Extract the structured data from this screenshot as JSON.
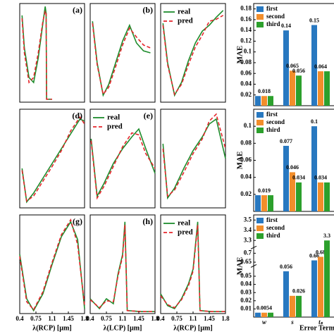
{
  "chart_data": [
    {
      "type": "line",
      "label": "(a)",
      "xlim": [
        0.4,
        1.8
      ],
      "ylim": [
        0,
        1
      ],
      "x": [
        0.45,
        0.5,
        0.6,
        0.7,
        0.8,
        0.9,
        0.95,
        0.97,
        0.98,
        1.1
      ],
      "series": [
        {
          "color": "#1e8c2c",
          "values": [
            0.88,
            0.55,
            0.25,
            0.2,
            0.45,
            0.8,
            0.97,
            0.9,
            0.03,
            0.03
          ]
        },
        {
          "color": "#e5262b",
          "dash": true,
          "values": [
            0.85,
            0.5,
            0.2,
            0.25,
            0.5,
            0.82,
            0.92,
            0.92,
            0.03,
            0.03
          ]
        }
      ]
    },
    {
      "type": "line",
      "label": "(b)",
      "xlim": [
        0.4,
        1.8
      ],
      "ylim": [
        0,
        1
      ],
      "x": [
        0.45,
        0.55,
        0.68,
        0.8,
        0.95,
        1.1,
        1.25,
        1.4,
        1.55,
        1.7
      ],
      "series": [
        {
          "color": "#1e8c2c",
          "values": [
            0.82,
            0.4,
            0.07,
            0.18,
            0.4,
            0.62,
            0.78,
            0.6,
            0.52,
            0.5
          ]
        },
        {
          "color": "#e5262b",
          "dash": true,
          "values": [
            0.8,
            0.38,
            0.08,
            0.15,
            0.36,
            0.58,
            0.75,
            0.66,
            0.58,
            0.55
          ]
        }
      ]
    },
    {
      "type": "line",
      "legend": true,
      "xlim": [
        0.4,
        1.8
      ],
      "ylim": [
        0,
        1
      ],
      "x": [
        0.45,
        0.55,
        0.7,
        0.85,
        1.0,
        1.15,
        1.3,
        1.45,
        1.6,
        1.75
      ],
      "series": [
        {
          "name": "real",
          "color": "#1e8c2c",
          "values": [
            0.8,
            0.4,
            0.07,
            0.2,
            0.42,
            0.6,
            0.72,
            0.78,
            0.86,
            0.93
          ]
        },
        {
          "name": "pred",
          "color": "#e5262b",
          "dash": true,
          "values": [
            0.78,
            0.38,
            0.08,
            0.18,
            0.38,
            0.56,
            0.68,
            0.82,
            0.84,
            0.88
          ]
        }
      ]
    },
    {
      "type": "line",
      "label": "(d)",
      "xlim": [
        0.4,
        1.8
      ],
      "ylim": [
        0,
        1
      ],
      "x": [
        0.45,
        0.55,
        0.7,
        0.9,
        1.1,
        1.3,
        1.5,
        1.7,
        1.8
      ],
      "series": [
        {
          "color": "#1e8c2c",
          "values": [
            0.4,
            0.06,
            0.15,
            0.3,
            0.45,
            0.6,
            0.75,
            0.9,
            0.88
          ]
        },
        {
          "color": "#e5262b",
          "dash": true,
          "values": [
            0.38,
            0.07,
            0.12,
            0.27,
            0.42,
            0.58,
            0.78,
            0.92,
            0.85
          ]
        }
      ]
    },
    {
      "type": "line",
      "label": "(e)",
      "legend": true,
      "xlim": [
        0.4,
        1.8
      ],
      "ylim": [
        0,
        1
      ],
      "x": [
        0.42,
        0.55,
        0.7,
        0.9,
        1.1,
        1.3,
        1.45,
        1.6,
        1.8
      ],
      "series": [
        {
          "name": "real",
          "color": "#1e8c2c",
          "values": [
            0.7,
            0.12,
            0.25,
            0.45,
            0.6,
            0.72,
            0.8,
            0.6,
            0.35
          ]
        },
        {
          "name": "pred",
          "color": "#e5262b",
          "dash": true,
          "values": [
            0.68,
            0.1,
            0.22,
            0.42,
            0.62,
            0.76,
            0.74,
            0.55,
            0.4
          ]
        }
      ]
    },
    {
      "type": "line",
      "xlim": [
        0.4,
        1.8
      ],
      "ylim": [
        0,
        1
      ],
      "x": [
        0.45,
        0.55,
        0.7,
        0.9,
        1.1,
        1.3,
        1.45,
        1.6,
        1.8
      ],
      "series": [
        {
          "color": "#1e8c2c",
          "values": [
            0.65,
            0.1,
            0.2,
            0.4,
            0.58,
            0.72,
            0.85,
            0.9,
            0.5
          ]
        },
        {
          "color": "#e5262b",
          "dash": true,
          "values": [
            0.6,
            0.12,
            0.18,
            0.36,
            0.55,
            0.7,
            0.88,
            0.95,
            0.6
          ]
        }
      ]
    },
    {
      "type": "line",
      "label": "(g)",
      "xlim": [
        0.4,
        1.8
      ],
      "ylim": [
        0,
        1
      ],
      "xticks": [
        0.4,
        0.75,
        1.1,
        1.45,
        1.8
      ],
      "xlabel": "λ(RCP) [µm]",
      "x": [
        0.4,
        0.55,
        0.7,
        0.9,
        1.1,
        1.3,
        1.5,
        1.65,
        1.8
      ],
      "series": [
        {
          "color": "#1e8c2c",
          "values": [
            0.6,
            0.15,
            0.03,
            0.2,
            0.5,
            0.78,
            0.93,
            0.75,
            0.05
          ]
        },
        {
          "color": "#e5262b",
          "dash": true,
          "values": [
            0.58,
            0.12,
            0.04,
            0.22,
            0.52,
            0.8,
            0.95,
            0.7,
            0.08
          ]
        }
      ]
    },
    {
      "type": "line",
      "label": "(h)",
      "xlim": [
        0.4,
        1.8
      ],
      "ylim": [
        0,
        1
      ],
      "xticks": [
        0.4,
        0.75,
        1.1,
        1.45,
        1.8
      ],
      "xlabel": "λ(LCP) [µm]",
      "x": [
        0.4,
        0.6,
        0.75,
        0.9,
        1.0,
        1.1,
        1.15,
        1.2,
        1.5,
        1.8
      ],
      "series": [
        {
          "color": "#1e8c2c",
          "values": [
            0.15,
            0.05,
            0.15,
            0.1,
            0.4,
            0.6,
            0.93,
            0.03,
            0.02,
            0.02
          ]
        },
        {
          "color": "#e5262b",
          "dash": true,
          "values": [
            0.14,
            0.06,
            0.13,
            0.12,
            0.38,
            0.58,
            0.9,
            0.03,
            0.02,
            0.02
          ]
        }
      ]
    },
    {
      "type": "line",
      "legend": true,
      "xlim": [
        0.4,
        1.8
      ],
      "ylim": [
        0,
        1
      ],
      "xticks": [
        0.4,
        0.75,
        1.1,
        1.45,
        1.8
      ],
      "xlabel": "λ(RCP) [µm]",
      "x": [
        0.4,
        0.55,
        0.7,
        0.85,
        1.0,
        1.1,
        1.2,
        1.25,
        1.5,
        1.8
      ],
      "series": [
        {
          "name": "real",
          "color": "#1e8c2c",
          "values": [
            0.2,
            0.08,
            0.05,
            0.15,
            0.3,
            0.45,
            0.93,
            0.03,
            0.02,
            0.02
          ]
        },
        {
          "name": "pred",
          "color": "#e5262b",
          "dash": true,
          "values": [
            0.18,
            0.09,
            0.06,
            0.14,
            0.28,
            0.43,
            0.9,
            0.03,
            0.02,
            0.02
          ]
        }
      ]
    },
    {
      "type": "bar",
      "ylabel": "MAE",
      "ylim": [
        0,
        0.19
      ],
      "yticks": [
        0.02,
        0.04,
        0.06,
        0.08,
        0.1,
        0.12,
        0.14,
        0.16,
        0.18
      ],
      "series": [
        {
          "name": "first",
          "color": "#2878c0",
          "values": [
            0.018,
            0.14,
            0.15
          ],
          "value_labels": [
            null,
            "0.14",
            "0.15"
          ]
        },
        {
          "name": "second",
          "color": "#f28e2b",
          "values": [
            0.018,
            0.065,
            0.064
          ],
          "value_labels": [
            "0.018",
            "0.065",
            "0.064"
          ]
        },
        {
          "name": "third",
          "color": "#2ca02c",
          "values": [
            0.018,
            0.056,
            0.064
          ],
          "value_labels": [
            null,
            "0.056",
            null
          ]
        }
      ]
    },
    {
      "type": "bar",
      "ylabel": "MAE",
      "ylim": [
        0,
        0.12
      ],
      "yticks": [
        0.02,
        0.04,
        0.06,
        0.08,
        0.1
      ],
      "series": [
        {
          "name": "first",
          "color": "#2878c0",
          "values": [
            0.019,
            0.077,
            0.1
          ],
          "value_labels": [
            null,
            "0.077",
            "0.1"
          ]
        },
        {
          "name": "second",
          "color": "#f28e2b",
          "values": [
            0.019,
            0.046,
            0.034
          ],
          "value_labels": [
            "0.019",
            "0.046",
            "0.034"
          ]
        },
        {
          "name": "third",
          "color": "#2ca02c",
          "values": [
            0.019,
            0.034,
            0.034
          ],
          "value_labels": [
            null,
            "0.034",
            null
          ]
        }
      ]
    },
    {
      "type": "bar",
      "ylabel": "MAE",
      "xlabel": "Error Terms",
      "categories": [
        "w",
        "s",
        "tₛ"
      ],
      "segments": [
        {
          "ylim": [
            0,
            0.06
          ],
          "yticks": [
            0.01,
            0.02,
            0.03,
            0.04,
            0.05
          ]
        },
        {
          "ylim": [
            0.64,
            0.72
          ],
          "yticks": [
            0.65,
            0.7
          ]
        },
        {
          "ylim": [
            3.25,
            3.55
          ],
          "yticks": [
            3.3,
            3.4,
            3.5
          ]
        }
      ],
      "series": [
        {
          "name": "first",
          "color": "#2878c0",
          "values": [
            0.0054,
            0.056,
            0.66
          ],
          "value_labels": [
            null,
            "0.056",
            "0.66"
          ]
        },
        {
          "name": "second",
          "color": "#f28e2b",
          "values": [
            0.0054,
            0.026,
            0.68
          ],
          "value_labels": [
            "0.0054",
            null,
            "0.68"
          ]
        },
        {
          "name": "third",
          "color": "#2ca02c",
          "values": [
            0.0054,
            0.026,
            3.3
          ],
          "value_labels": [
            null,
            "0.026",
            "3.3"
          ]
        }
      ]
    }
  ]
}
